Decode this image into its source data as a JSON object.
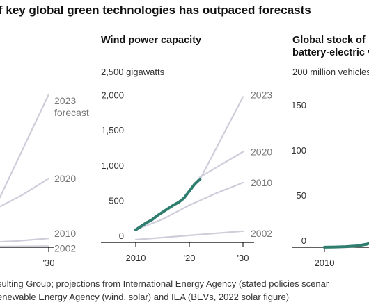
{
  "headline": "f key global green technologies has outpaced forecasts",
  "source_lines": [
    "sulting Group; projections from International Energy Agency (stated policies scenar",
    "enewable Energy Agency (wind, solar) and IEA (BEVs, 2022 solar figure)"
  ],
  "colors": {
    "actual": "#2e7d6e",
    "forecast": "#cfcdd9",
    "baseline": "#000000"
  },
  "chart_data": [
    {
      "type": "line",
      "title": "",
      "unit_label": "",
      "ylim": [
        0,
        1150
      ],
      "yticks": [],
      "xticks": [
        {
          "value": 2030,
          "label": "'30"
        }
      ],
      "series": [
        {
          "name": "2023 forecast",
          "label_lines": [
            "2023",
            "forecast"
          ],
          "role": "forecast",
          "x": [
            2022,
            2030
          ],
          "y": [
            300,
            1110
          ]
        },
        {
          "name": "2020",
          "label_lines": [
            "2020"
          ],
          "role": "forecast",
          "x": [
            2022,
            2026,
            2030
          ],
          "y": [
            280,
            380,
            500
          ]
        },
        {
          "name": "2010",
          "label_lines": [
            "2010"
          ],
          "role": "forecast",
          "x": [
            2020,
            2025,
            2030
          ],
          "y": [
            35,
            45,
            65
          ]
        },
        {
          "name": "2002",
          "label_lines": [
            "2002"
          ],
          "role": "forecast",
          "x": [
            2020,
            2030
          ],
          "y": [
            5,
            8
          ]
        },
        {
          "name": "Actual",
          "role": "actual",
          "x": [
            2020,
            2021,
            2022
          ],
          "y": [
            170,
            240,
            310
          ]
        }
      ]
    },
    {
      "type": "line",
      "title": "Wind power capacity",
      "unit_label": "2,500 gigawatts",
      "ylim": [
        0,
        2500
      ],
      "yticks": [
        {
          "value": 0,
          "label": "0"
        },
        {
          "value": 500,
          "label": "500"
        },
        {
          "value": 1000,
          "label": "1,000"
        },
        {
          "value": 1500,
          "label": "1,500"
        },
        {
          "value": 2000,
          "label": "2,000"
        }
      ],
      "xticks": [
        {
          "value": 2010,
          "label": "2010"
        },
        {
          "value": 2020,
          "label": "'20"
        },
        {
          "value": 2030,
          "label": "'30"
        }
      ],
      "series": [
        {
          "name": "2023",
          "label_lines": [
            "2023"
          ],
          "role": "forecast",
          "x": [
            2022,
            2030
          ],
          "y": [
            900,
            2070
          ]
        },
        {
          "name": "2020",
          "label_lines": [
            "2020"
          ],
          "role": "forecast",
          "x": [
            2019,
            2022,
            2026,
            2030
          ],
          "y": [
            640,
            930,
            1110,
            1290
          ]
        },
        {
          "name": "2010",
          "label_lines": [
            "2010"
          ],
          "role": "forecast",
          "x": [
            2010,
            2015,
            2020,
            2025,
            2030
          ],
          "y": [
            180,
            330,
            530,
            700,
            850
          ]
        },
        {
          "name": "2002",
          "label_lines": [
            "2002"
          ],
          "role": "forecast",
          "x": [
            2010,
            2020,
            2030
          ],
          "y": [
            40,
            100,
            160
          ]
        },
        {
          "name": "Actual",
          "role": "actual",
          "x": [
            2010,
            2011,
            2012,
            2013,
            2014,
            2015,
            2016,
            2017,
            2018,
            2019,
            2020,
            2021,
            2022
          ],
          "y": [
            180,
            230,
            280,
            320,
            380,
            430,
            480,
            530,
            570,
            630,
            730,
            830,
            900
          ]
        }
      ]
    },
    {
      "type": "line",
      "title_lines": [
        "Global stock of",
        "battery-electric v"
      ],
      "unit_label": "200 million vehicles",
      "ylim": [
        0,
        200
      ],
      "yticks": [
        {
          "value": 0,
          "label": "0"
        },
        {
          "value": 50,
          "label": "50"
        },
        {
          "value": 100,
          "label": "100"
        },
        {
          "value": 150,
          "label": "150"
        }
      ],
      "xticks": [
        {
          "value": 2010,
          "label": "2010"
        }
      ],
      "series": [
        {
          "name": "Actual",
          "role": "actual",
          "x": [
            2010,
            2012,
            2014,
            2016,
            2018,
            2019
          ],
          "y": [
            0.1,
            0.3,
            0.7,
            1.5,
            3.5,
            6
          ]
        }
      ]
    }
  ]
}
